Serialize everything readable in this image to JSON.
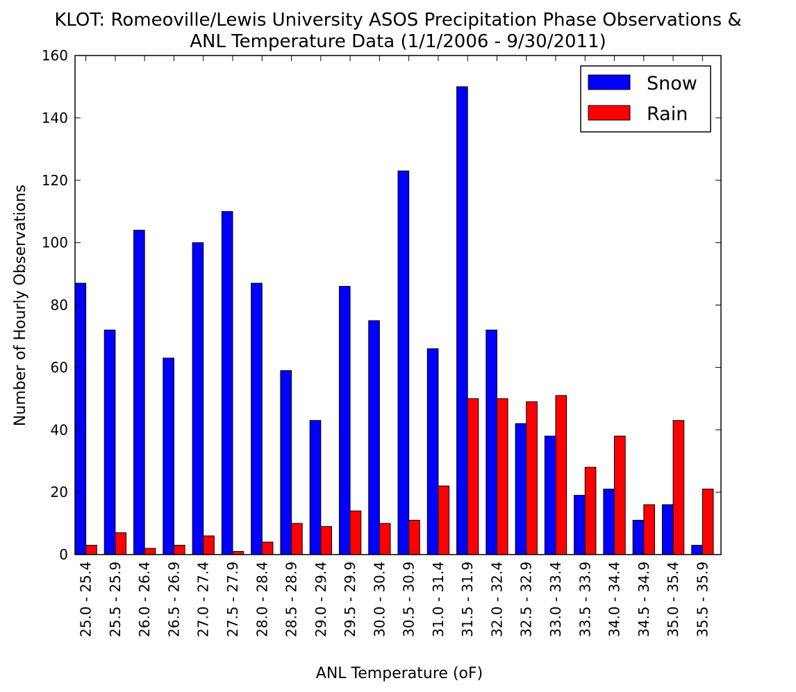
{
  "chart_data": {
    "type": "bar",
    "title": "KLOT: Romeoville/Lewis University ASOS Precipitation Phase Observations &",
    "subtitle": "ANL Temperature Data (1/1/2006 - 9/30/2011)",
    "xlabel": "ANL Temperature",
    "xlabel_unit": "(oF)",
    "ylabel": "Number of Hourly Observations",
    "ylim": [
      0,
      160
    ],
    "yticks": [
      "0",
      "20",
      "40",
      "60",
      "80",
      "100",
      "120",
      "140",
      "160"
    ],
    "grid": false,
    "legend_position": "top-right",
    "categories": [
      "25.0 - 25.4",
      "25.5 - 25.9",
      "26.0 - 26.4",
      "26.5 - 26.9",
      "27.0 - 27.4",
      "27.5 - 27.9",
      "28.0 - 28.4",
      "28.5 - 28.9",
      "29.0 - 29.4",
      "29.5 - 29.9",
      "30.0 - 30.4",
      "30.5 - 30.9",
      "31.0 - 31.4",
      "31.5 - 31.9",
      "32.0 - 32.4",
      "32.5 - 32.9",
      "33.0 - 33.4",
      "33.5 - 33.9",
      "34.0 - 34.4",
      "34.5 - 34.9",
      "35.0 - 35.4",
      "35.5 - 35.9"
    ],
    "series": [
      {
        "name": "Snow",
        "color": "#0000ff",
        "values": [
          87,
          72,
          104,
          63,
          100,
          110,
          87,
          59,
          43,
          86,
          75,
          123,
          66,
          150,
          72,
          42,
          38,
          19,
          21,
          11,
          16,
          3
        ]
      },
      {
        "name": "Rain",
        "color": "#ff0000",
        "values": [
          3,
          7,
          2,
          3,
          6,
          1,
          4,
          10,
          9,
          14,
          10,
          11,
          22,
          50,
          50,
          49,
          51,
          28,
          38,
          16,
          43,
          21
        ]
      }
    ]
  }
}
